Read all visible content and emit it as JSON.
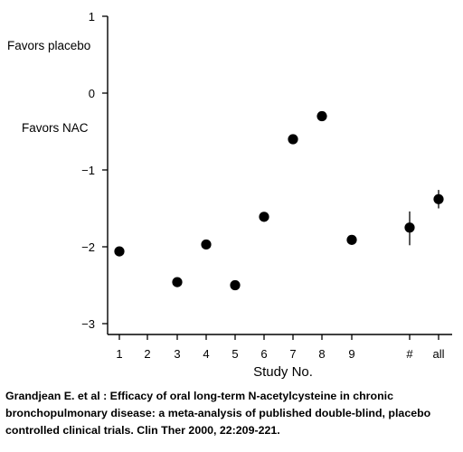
{
  "chart_data": {
    "type": "scatter",
    "title": "",
    "xlabel": "Study No.",
    "ylabel": "",
    "categories": [
      "1",
      "2",
      "3",
      "4",
      "5",
      "6",
      "7",
      "8",
      "9",
      "#",
      "all"
    ],
    "ylim": [
      -3.2,
      1
    ],
    "yticks": [
      1,
      0,
      -1,
      -2,
      -3
    ],
    "ytick_labels": [
      "1",
      "0",
      "−1",
      "−2",
      "−3"
    ],
    "grid": false,
    "points": [
      {
        "x": "1",
        "y": -2.06
      },
      {
        "x": "3",
        "y": -2.46
      },
      {
        "x": "4",
        "y": -1.97
      },
      {
        "x": "5",
        "y": -2.5
      },
      {
        "x": "6",
        "y": -1.61
      },
      {
        "x": "7",
        "y": -0.6
      },
      {
        "x": "8",
        "y": -0.3
      },
      {
        "x": "9",
        "y": -1.91
      },
      {
        "x": "#",
        "y": -1.75,
        "low": -1.98,
        "high": -1.54
      },
      {
        "x": "all",
        "y": -1.38,
        "low": -1.5,
        "high": -1.26
      }
    ],
    "annotations": [
      "Favors placebo",
      "Favors NAC"
    ]
  },
  "caption": [
    "Grandjean E. et al : Efficacy of oral long-term N-acetylcysteine in chronic",
    "bronchopulmonary disease: a meta-analysis of published double-blind, placebo",
    "controlled clinical trials. Clin Ther 2000, 22:209-221."
  ]
}
